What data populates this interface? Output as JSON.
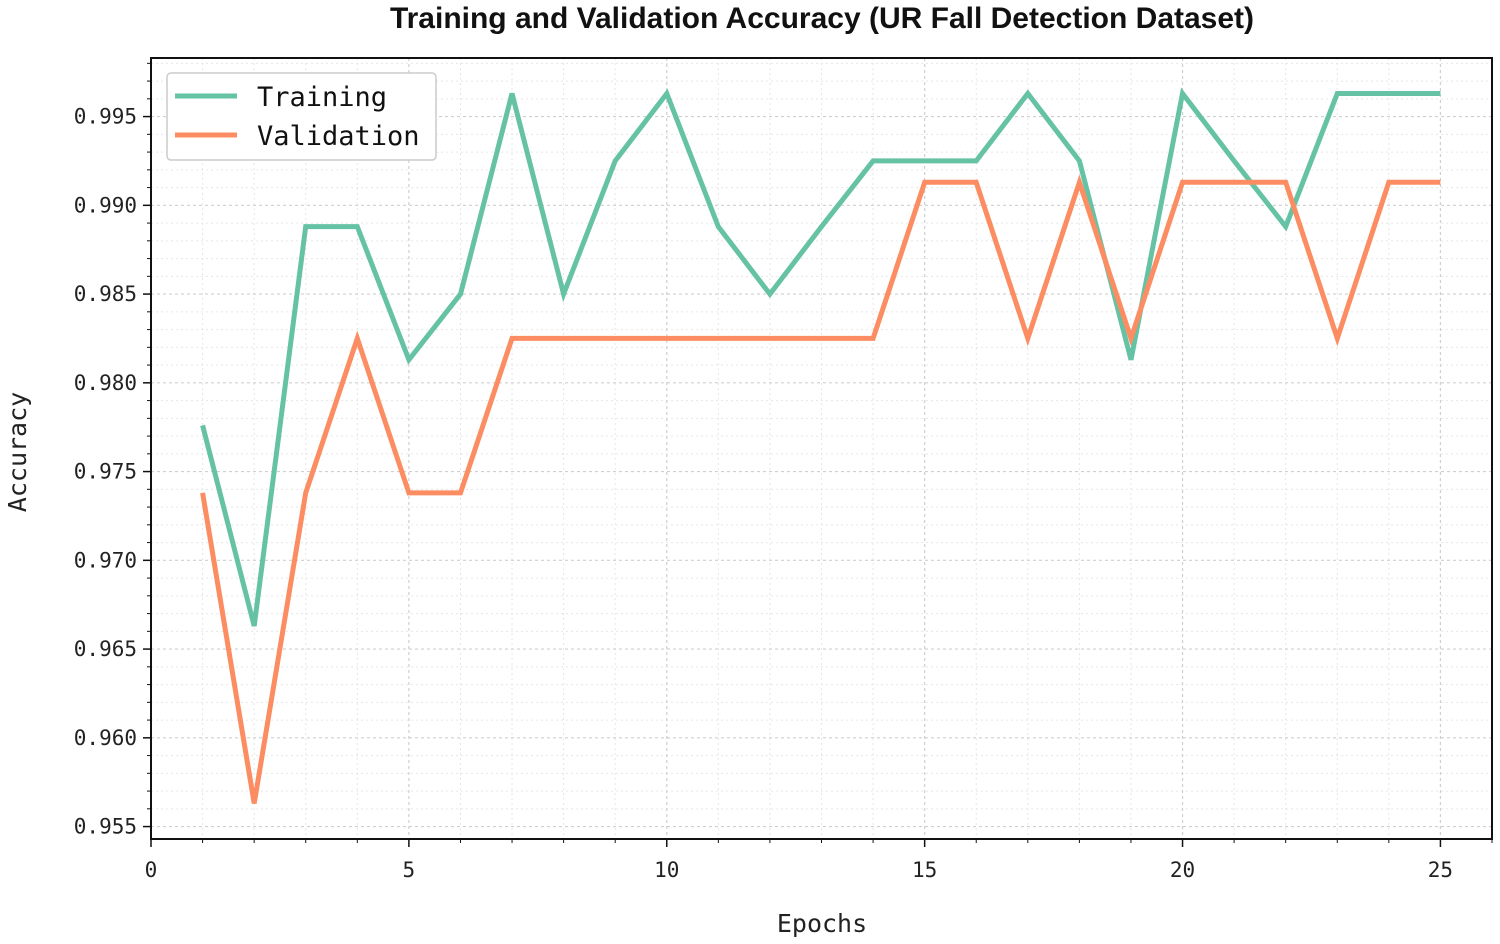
{
  "chart_data": {
    "type": "line",
    "title": "Training and Validation Accuracy (UR Fall Detection Dataset)",
    "xlabel": "Epochs",
    "ylabel": "Accuracy",
    "xlim": [
      0,
      26
    ],
    "ylim": [
      0.9543,
      0.9983
    ],
    "xticks": [
      0,
      5,
      10,
      15,
      20,
      25
    ],
    "yticks": [
      0.955,
      0.96,
      0.965,
      0.97,
      0.975,
      0.98,
      0.985,
      0.99,
      0.995
    ],
    "grid": true,
    "legend_position": "top-left",
    "x": [
      1,
      2,
      3,
      4,
      5,
      6,
      7,
      8,
      9,
      10,
      11,
      12,
      13,
      14,
      15,
      16,
      17,
      18,
      19,
      20,
      21,
      22,
      23,
      24,
      25
    ],
    "series": [
      {
        "name": "Training",
        "color": "#66c2a5",
        "values": [
          0.9776,
          0.9663,
          0.9888,
          0.9888,
          0.9813,
          0.985,
          0.9963,
          0.985,
          0.9925,
          0.9963,
          0.9888,
          0.985,
          0.9888,
          0.9925,
          0.9925,
          0.9925,
          0.9963,
          0.9925,
          0.9813,
          0.9963,
          0.9925,
          0.9888,
          0.9963,
          0.9963,
          0.9963
        ]
      },
      {
        "name": "Validation",
        "color": "#fc8d62",
        "values": [
          0.9738,
          0.9563,
          0.9738,
          0.9825,
          0.9738,
          0.9738,
          0.9825,
          0.9825,
          0.9825,
          0.9825,
          0.9825,
          0.9825,
          0.9825,
          0.9825,
          0.9913,
          0.9913,
          0.9825,
          0.9913,
          0.9825,
          0.9913,
          0.9913,
          0.9913,
          0.9825,
          0.9913,
          0.9913
        ]
      }
    ]
  }
}
